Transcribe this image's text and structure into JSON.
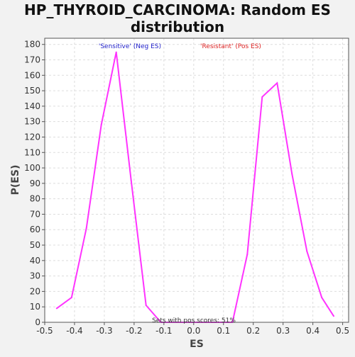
{
  "chart_data": {
    "type": "line",
    "title": "HP_THYROID_CARCINOMA: Random ES distribution",
    "xlabel": "ES",
    "ylabel": "P(ES)",
    "xlim": [
      -0.5,
      0.52
    ],
    "ylim": [
      0,
      184
    ],
    "x_ticks": [
      -0.5,
      -0.4,
      -0.3,
      -0.2,
      -0.1,
      0.0,
      0.1,
      0.2,
      0.3,
      0.4,
      0.5
    ],
    "x_tick_labels": [
      "-0.5",
      "-0.4",
      "-0.3",
      "-0.2",
      "-0.1",
      "0.0",
      "0.1",
      "0.2",
      "0.3",
      "0.4",
      "0.5"
    ],
    "y_ticks": [
      0,
      10,
      20,
      30,
      40,
      50,
      60,
      70,
      80,
      90,
      100,
      110,
      120,
      130,
      140,
      150,
      160,
      170,
      180
    ],
    "grid": true,
    "series": [
      {
        "color": "#ff33ff",
        "x": [
          -0.46,
          -0.41,
          -0.36,
          -0.31,
          -0.26,
          -0.21,
          -0.16,
          -0.11,
          -0.06,
          -0.01,
          0.04,
          0.09,
          0.13,
          0.18,
          0.23,
          0.28,
          0.33,
          0.38,
          0.43,
          0.47
        ],
        "y": [
          9,
          16,
          61,
          128,
          175,
          92,
          11,
          0,
          0,
          0,
          0,
          0,
          0,
          44,
          146,
          155,
          96,
          46,
          16,
          4
        ]
      }
    ],
    "legend": [
      {
        "label": "'Sensitive' (Neg ES)",
        "color": "#2222cc"
      },
      {
        "label": "'Resistant' (Pos ES)",
        "color": "#dd2222"
      }
    ],
    "annotation": "Sets with pos scores: 51%"
  }
}
